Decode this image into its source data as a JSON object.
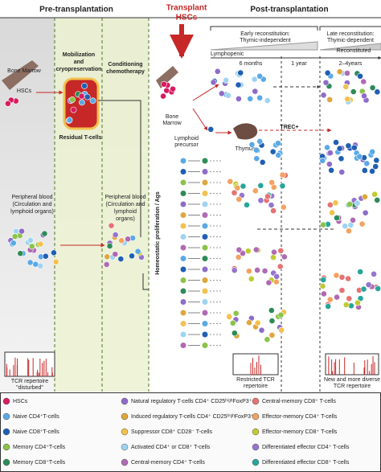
{
  "header": {
    "pre": "Pre-transplantation",
    "transplant": [
      "Transplant",
      "HSCs"
    ],
    "post": "Post-transplantation",
    "early": [
      "Early reconstitution:",
      "Thymic-independent"
    ],
    "late": [
      "Late reconstitution:",
      "Thymic-dependent"
    ],
    "lymphopenic": "Lymphopenic",
    "reconstituted": "Reconstituted",
    "timeline": [
      "6 months",
      "1 year",
      "2–4years"
    ]
  },
  "labels": {
    "bone_marrow": "Bone Marrow",
    "hscs": "HSCs",
    "mobilization": [
      "Mobilization",
      "and",
      "cryopreservation"
    ],
    "conditioning": [
      "Conditioning",
      "chemotherapy"
    ],
    "residual": "Residual T-cells",
    "bone_marrow_post": "Bone",
    "bone_marrow_post2": "Marrow",
    "lymphoid": [
      "Lymphoid",
      "precursor"
    ],
    "thymus": "Thymus",
    "trec": "TREC+",
    "peripheral_pre": [
      "Peripheral blood",
      "(Circulation and",
      "lymphoid organs)"
    ],
    "peripheral_mid": [
      "Peripheral blood",
      "(Circulation and",
      "lymphoid",
      "organs)"
    ],
    "homeostatic": "Homeostatic proliferation / Ags",
    "tcr_disturbed": [
      "TCR repertoire",
      "\"disturbed\""
    ],
    "tcr_restricted": [
      "Restricted TCR",
      "repertoire"
    ],
    "tcr_new": [
      "New and more diverse",
      "TCR repertoire"
    ]
  },
  "legend": [
    {
      "label": "HSCs",
      "color": "#d81b60"
    },
    {
      "label": "Naive CD4⁺T-cells",
      "color": "#5aa9e6"
    },
    {
      "label": "Naive CD8⁺T-cells",
      "color": "#1f5fb4"
    },
    {
      "label": "Memory CD4⁺T-cells",
      "color": "#8bc34a"
    },
    {
      "label": "Memory CD8⁺T-cells",
      "color": "#2e8b57"
    },
    {
      "label": "Natural regulatory T-cells CD4⁺ CD25ʰⁱᵍʰFoxP3⁺",
      "color": "#8e6cc9"
    },
    {
      "label": "Induced regulatory T-cells CD4⁺ CD25ʰⁱᵍʰFoxP3⁺",
      "color": "#e0a63c"
    },
    {
      "label": "Suppressor CD8⁺ CD28⁻ T-cells",
      "color": "#f2c14e"
    },
    {
      "label": "Activated CD4⁺ or CD8⁺ T-cells",
      "color": "#9fd3f0"
    },
    {
      "label": "Central-memory CD4⁺ T-cells",
      "color": "#b06ab3"
    },
    {
      "label": "Central-memory CD8⁺ T-cells",
      "color": "#e57373"
    },
    {
      "label": "Effector-memory CD4⁺ T-cells",
      "color": "#f4a261"
    },
    {
      "label": "Effector-memory CD8⁺ T-cells",
      "color": "#c0ca33"
    },
    {
      "label": "Differentiated effector CD4⁺ T-cells",
      "color": "#9575cd"
    },
    {
      "label": "Differentiated effector CD8⁺ T-cells",
      "color": "#26a69a"
    }
  ]
}
